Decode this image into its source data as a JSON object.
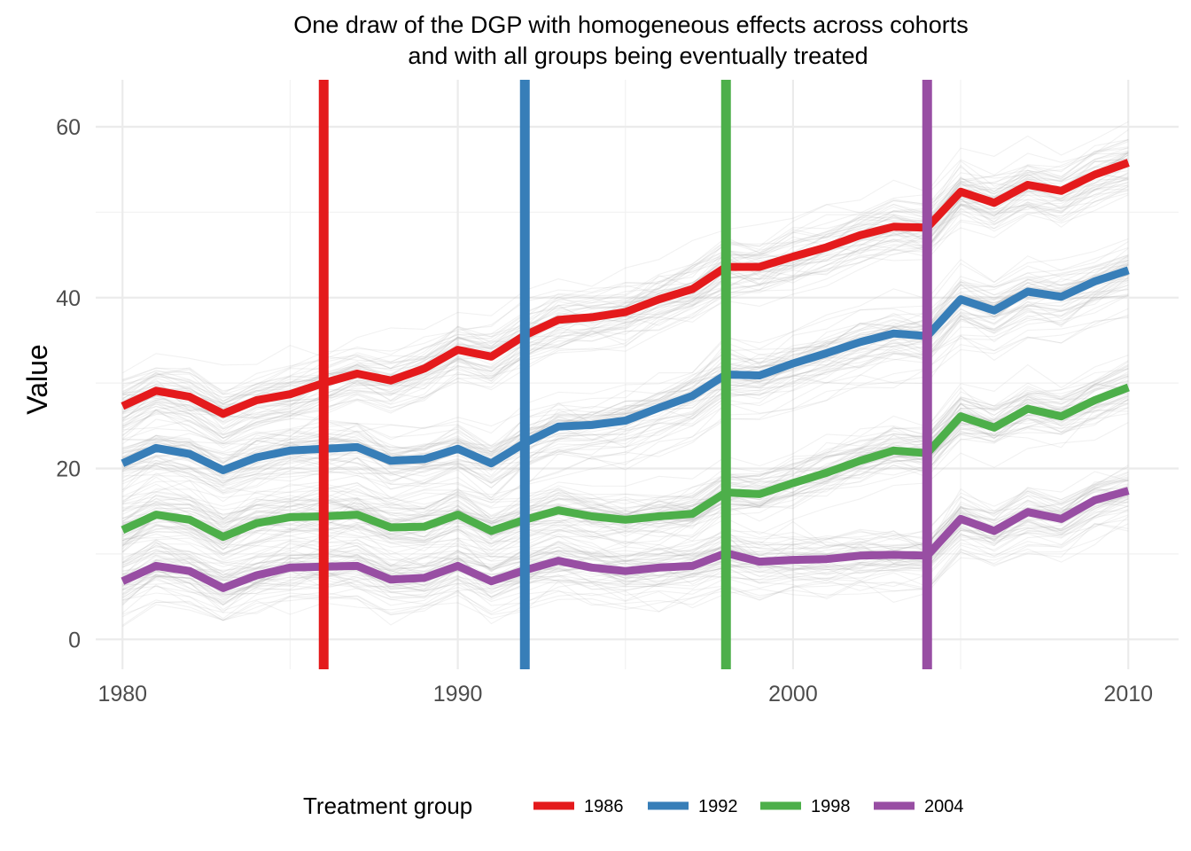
{
  "chart_data": {
    "type": "line",
    "title_lines": [
      "One draw of the DGP with homogeneous effects across cohorts",
      "and with all groups being eventually treated"
    ],
    "xlabel": "",
    "ylabel": "Value",
    "xlim": [
      1979.2,
      2011.5
    ],
    "ylim": [
      -3.5,
      65.5
    ],
    "x_ticks": [
      1980,
      1990,
      2000,
      2010
    ],
    "y_ticks": [
      0,
      20,
      40,
      60
    ],
    "grid": true,
    "legend": {
      "title": "Treatment group",
      "position": "bottom"
    },
    "x": [
      1980,
      1981,
      1982,
      1983,
      1984,
      1985,
      1986,
      1987,
      1988,
      1989,
      1990,
      1991,
      1992,
      1993,
      1994,
      1995,
      1996,
      1997,
      1998,
      1999,
      2000,
      2001,
      2002,
      2003,
      2004,
      2005,
      2006,
      2007,
      2008,
      2009,
      2010
    ],
    "series": [
      {
        "name": "1986",
        "color": "#e41a1c",
        "treatment_year": 1986,
        "values": [
          27.3,
          29.1,
          28.4,
          26.4,
          28.0,
          28.7,
          30.0,
          31.1,
          30.3,
          31.7,
          33.9,
          33.1,
          35.6,
          37.4,
          37.7,
          38.3,
          39.8,
          41.0,
          43.6,
          43.6,
          44.8,
          45.9,
          47.3,
          48.3,
          48.2,
          52.4,
          51.1,
          53.2,
          52.5,
          54.4,
          55.8
        ]
      },
      {
        "name": "1992",
        "color": "#377eb8",
        "treatment_year": 1992,
        "values": [
          20.6,
          22.4,
          21.7,
          19.8,
          21.3,
          22.1,
          22.3,
          22.5,
          20.9,
          21.1,
          22.3,
          20.6,
          23.0,
          24.9,
          25.1,
          25.6,
          27.1,
          28.5,
          31.0,
          30.9,
          32.3,
          33.5,
          34.8,
          35.8,
          35.5,
          39.8,
          38.5,
          40.7,
          40.1,
          41.9,
          43.2
        ]
      },
      {
        "name": "1998",
        "color": "#4daf4a",
        "treatment_year": 1998,
        "values": [
          12.8,
          14.6,
          14.0,
          12.0,
          13.6,
          14.3,
          14.4,
          14.6,
          13.1,
          13.2,
          14.6,
          12.7,
          14.0,
          15.1,
          14.4,
          14.0,
          14.4,
          14.7,
          17.2,
          17.0,
          18.3,
          19.5,
          20.9,
          22.1,
          21.8,
          26.1,
          24.8,
          27.0,
          26.1,
          28.0,
          29.5
        ]
      },
      {
        "name": "2004",
        "color": "#984ea3",
        "treatment_year": 2004,
        "values": [
          6.8,
          8.6,
          8.0,
          6.0,
          7.5,
          8.4,
          8.5,
          8.6,
          7.0,
          7.2,
          8.6,
          6.8,
          8.1,
          9.2,
          8.4,
          8.0,
          8.4,
          8.6,
          10.1,
          9.1,
          9.3,
          9.4,
          9.8,
          9.9,
          9.8,
          14.1,
          12.7,
          14.9,
          14.1,
          16.3,
          17.4
        ]
      }
    ]
  }
}
